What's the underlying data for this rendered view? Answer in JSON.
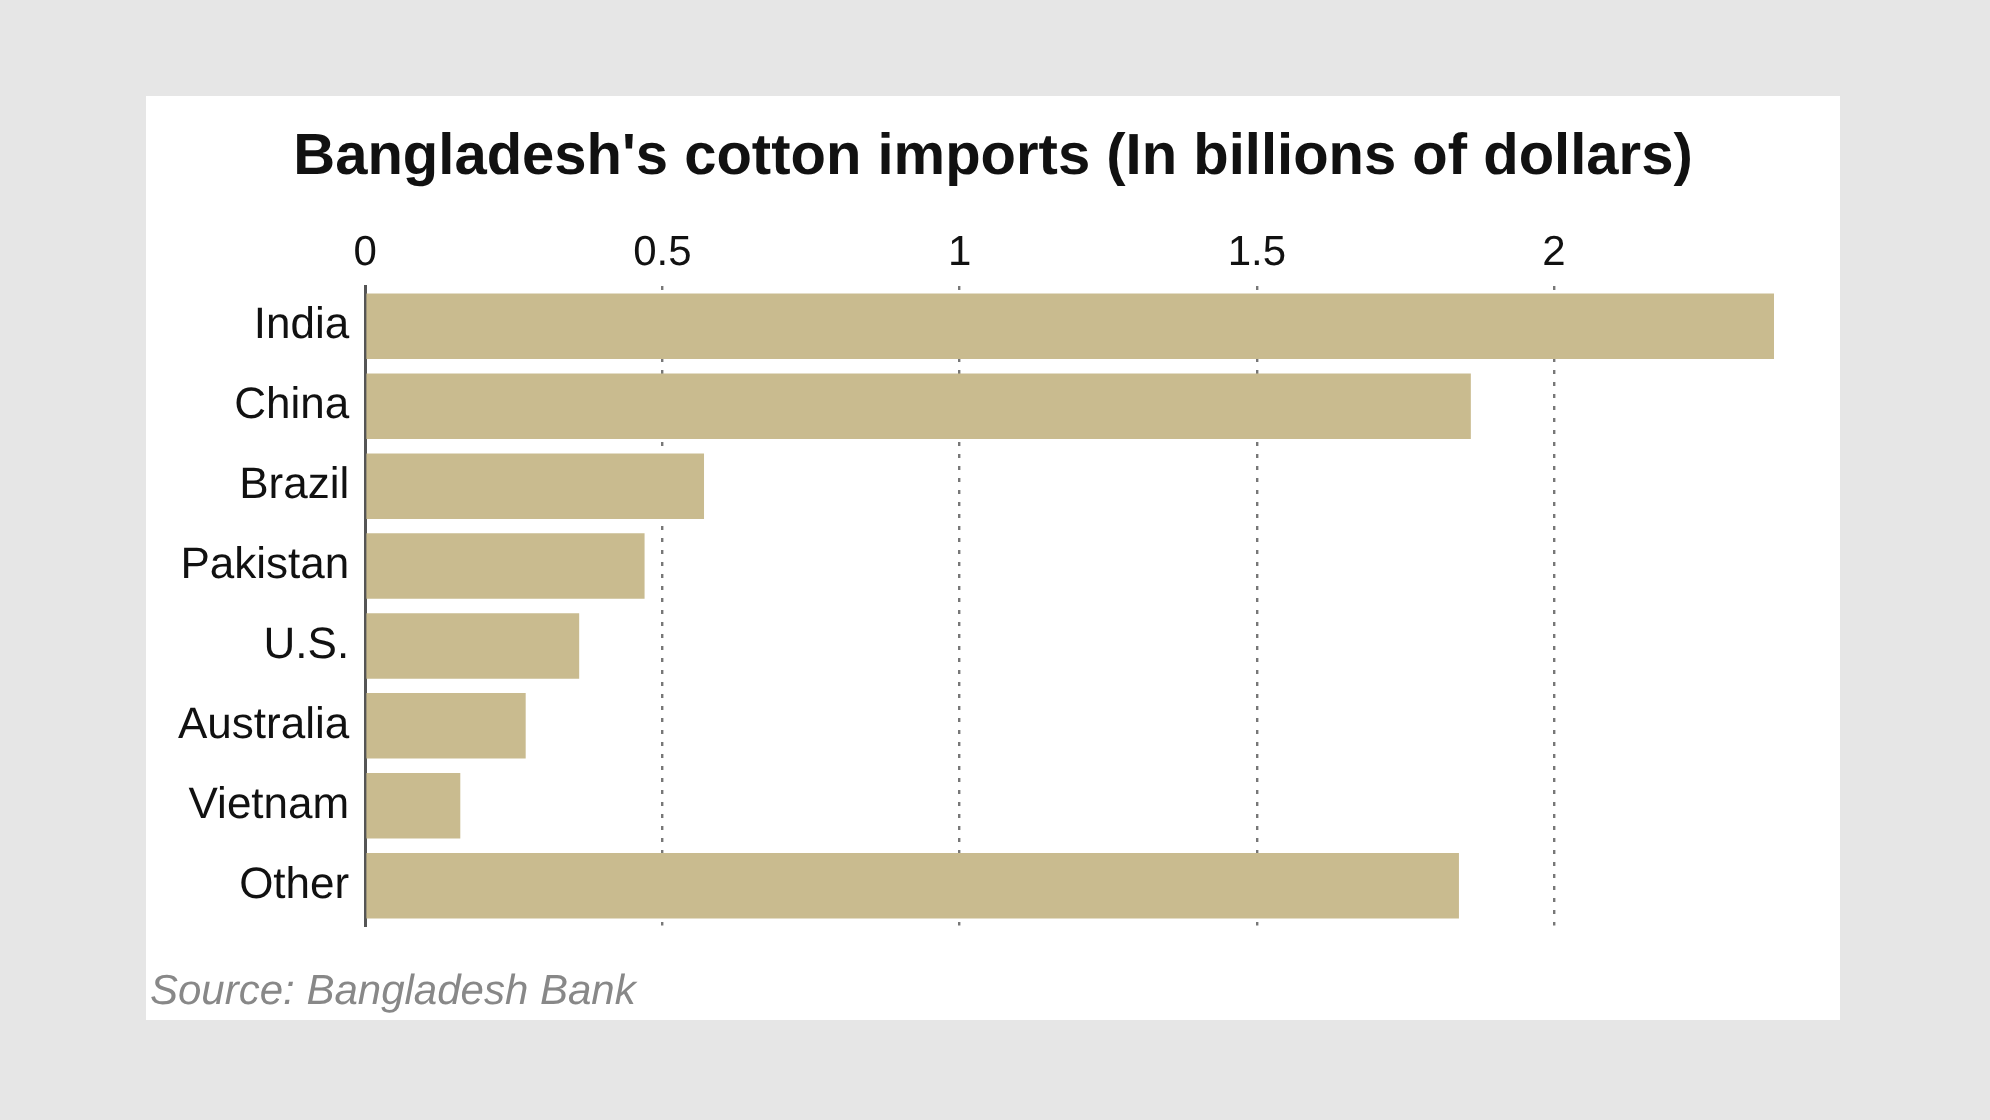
{
  "chart_data": {
    "type": "bar",
    "orientation": "horizontal",
    "title": "Bangladesh's cotton imports (In billions of dollars)",
    "categories": [
      "India",
      "China",
      "Brazil",
      "Pakistan",
      "U.S.",
      "Australia",
      "Vietnam",
      "Other"
    ],
    "values": [
      2.37,
      1.86,
      0.57,
      0.47,
      0.36,
      0.27,
      0.16,
      1.84
    ],
    "color": "#c9bb8f",
    "xlim": [
      0,
      2.37
    ],
    "xticks": [
      0,
      0.5,
      1,
      1.5,
      2
    ],
    "grid": "x",
    "legend": false,
    "annotations": [
      "Source: Bangladesh Bank"
    ]
  }
}
